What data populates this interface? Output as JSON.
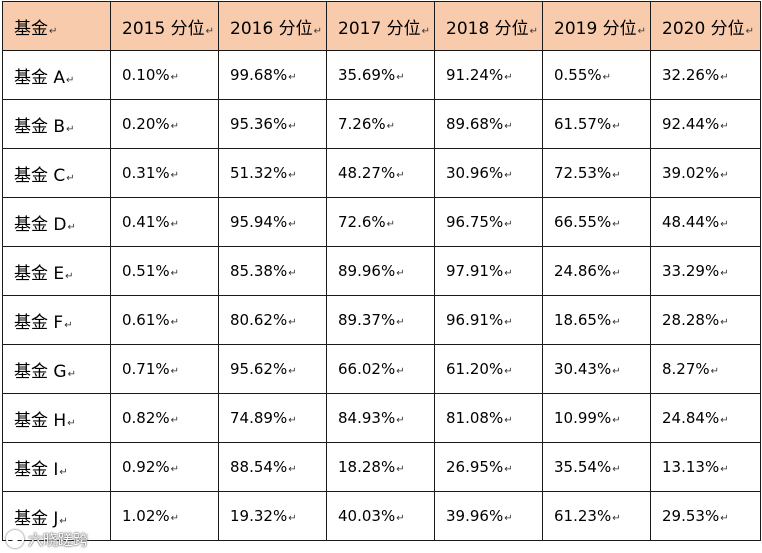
{
  "para_mark": "↵",
  "table": {
    "header": [
      "基金",
      "2015 分位",
      "2016 分位",
      "2017 分位",
      "2018 分位",
      "2019 分位",
      "2020 分位"
    ],
    "rows": [
      [
        "基金 A",
        "0.10%",
        "99.68%",
        "35.69%",
        "91.24%",
        "0.55%",
        "32.26%"
      ],
      [
        "基金 B",
        "0.20%",
        "95.36%",
        "7.26%",
        "89.68%",
        "61.57%",
        "92.44%"
      ],
      [
        "基金 C",
        "0.31%",
        "51.32%",
        "48.27%",
        "30.96%",
        "72.53%",
        "39.02%"
      ],
      [
        "基金 D",
        "0.41%",
        "95.94%",
        "72.6%",
        "96.75%",
        "66.55%",
        "48.44%"
      ],
      [
        "基金 E",
        "0.51%",
        "85.38%",
        "89.96%",
        "97.91%",
        "24.86%",
        "33.29%"
      ],
      [
        "基金 F",
        "0.61%",
        "80.62%",
        "89.37%",
        "96.91%",
        "18.65%",
        "28.28%"
      ],
      [
        "基金 G",
        "0.71%",
        "95.62%",
        "66.02%",
        "61.20%",
        "30.43%",
        "8.27%"
      ],
      [
        "基金 H",
        "0.82%",
        "74.89%",
        "84.93%",
        "81.08%",
        "10.99%",
        "24.84%"
      ],
      [
        "基金 I",
        "0.92%",
        "88.54%",
        "18.28%",
        "26.95%",
        "35.54%",
        "13.13%"
      ],
      [
        "基金 J",
        "1.02%",
        "19.32%",
        "40.03%",
        "39.96%",
        "61.23%",
        "29.53%"
      ]
    ]
  },
  "watermark": {
    "text": "六晓蹉跨",
    "icon": "circle-logo-icon"
  },
  "colors": {
    "header_bg": "#f8cbad",
    "border": "#1a1a1a"
  }
}
